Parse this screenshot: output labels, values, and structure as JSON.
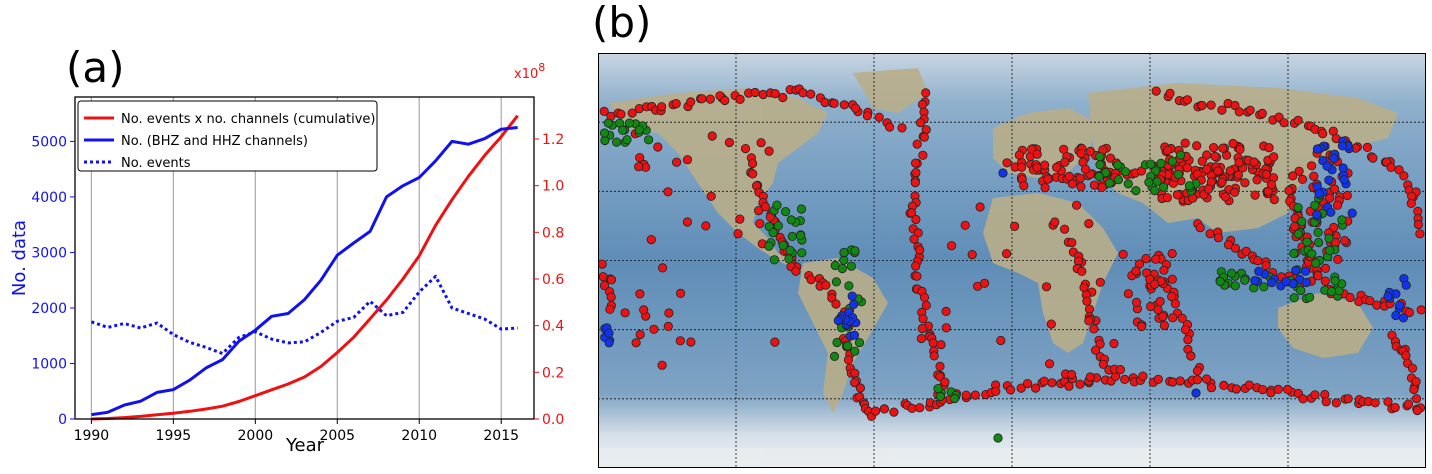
{
  "chart_data": [
    {
      "panel_label": "(a)",
      "type": "line",
      "xlabel": "Year",
      "ylabel": "No. data",
      "xlim": [
        1989,
        2017
      ],
      "ylim": [
        0,
        5800
      ],
      "y2lim": [
        0.0,
        1.38
      ],
      "y2_scale_label": "x10",
      "y2_scale_exponent": "8",
      "x_ticks": [
        "1990",
        "1995",
        "2000",
        "2005",
        "2010",
        "2015"
      ],
      "x_tick_values": [
        1990,
        1995,
        2000,
        2005,
        2010,
        2015
      ],
      "y_ticks": [
        "0",
        "1000",
        "2000",
        "3000",
        "4000",
        "5000"
      ],
      "y_tick_values": [
        0,
        1000,
        2000,
        3000,
        4000,
        5000
      ],
      "y2_ticks": [
        "0.0",
        "0.2",
        "0.4",
        "0.6",
        "0.8",
        "1.0",
        "1.2"
      ],
      "y2_tick_values": [
        0.0,
        0.2,
        0.4,
        0.6,
        0.8,
        1.0,
        1.2
      ],
      "legend_position": "top-left",
      "series": [
        {
          "name": "No. events x no. channels (cumulative)",
          "axis": "right",
          "color": "#ee1111",
          "style": "solid",
          "x": [
            1990,
            1991,
            1992,
            1993,
            1994,
            1995,
            1996,
            1997,
            1998,
            1999,
            2000,
            2001,
            2002,
            2003,
            2004,
            2005,
            2006,
            2007,
            2008,
            2009,
            2010,
            2011,
            2012,
            2013,
            2014,
            2015,
            2016
          ],
          "values": [
            0.0,
            0.002,
            0.006,
            0.011,
            0.018,
            0.025,
            0.033,
            0.043,
            0.055,
            0.075,
            0.1,
            0.125,
            0.15,
            0.18,
            0.225,
            0.285,
            0.35,
            0.43,
            0.51,
            0.6,
            0.7,
            0.83,
            0.94,
            1.04,
            1.13,
            1.21,
            1.3
          ]
        },
        {
          "name": "No. (BHZ and HHZ channels)",
          "axis": "left",
          "color": "#1111ee",
          "style": "solid",
          "x": [
            1990,
            1991,
            1992,
            1993,
            1994,
            1995,
            1996,
            1997,
            1998,
            1999,
            2000,
            2001,
            2002,
            2003,
            2004,
            2005,
            2006,
            2007,
            2008,
            2009,
            2010,
            2011,
            2012,
            2013,
            2014,
            2015,
            2016
          ],
          "values": [
            80,
            120,
            250,
            320,
            480,
            530,
            700,
            920,
            1070,
            1400,
            1600,
            1850,
            1900,
            2150,
            2500,
            2950,
            3170,
            3380,
            4000,
            4200,
            4350,
            4650,
            5000,
            4950,
            5050,
            5220,
            5250
          ]
        },
        {
          "name": "No. events",
          "axis": "left",
          "color": "#1111ee",
          "style": "dotted",
          "x": [
            1990,
            1991,
            1992,
            1993,
            1994,
            1995,
            1996,
            1997,
            1998,
            1999,
            2000,
            2001,
            2002,
            2003,
            2004,
            2005,
            2006,
            2007,
            2008,
            2009,
            2010,
            2011,
            2012,
            2013,
            2014,
            2015,
            2016
          ],
          "values": [
            1750,
            1650,
            1720,
            1640,
            1730,
            1520,
            1380,
            1290,
            1180,
            1470,
            1570,
            1440,
            1370,
            1390,
            1560,
            1760,
            1830,
            2120,
            1860,
            1920,
            2290,
            2570,
            2000,
            1900,
            1800,
            1620,
            1640
          ]
        }
      ]
    },
    {
      "panel_label": "(b)",
      "type": "scatter",
      "projection": "equirectangular world map",
      "xlabel": "",
      "ylabel": "",
      "xlim": [
        -180,
        180
      ],
      "ylim": [
        -90,
        90
      ],
      "grid": true,
      "marker_colors": {
        "red": "#ee1111",
        "green": "#118811",
        "blue": "#1133ee"
      }
    }
  ]
}
